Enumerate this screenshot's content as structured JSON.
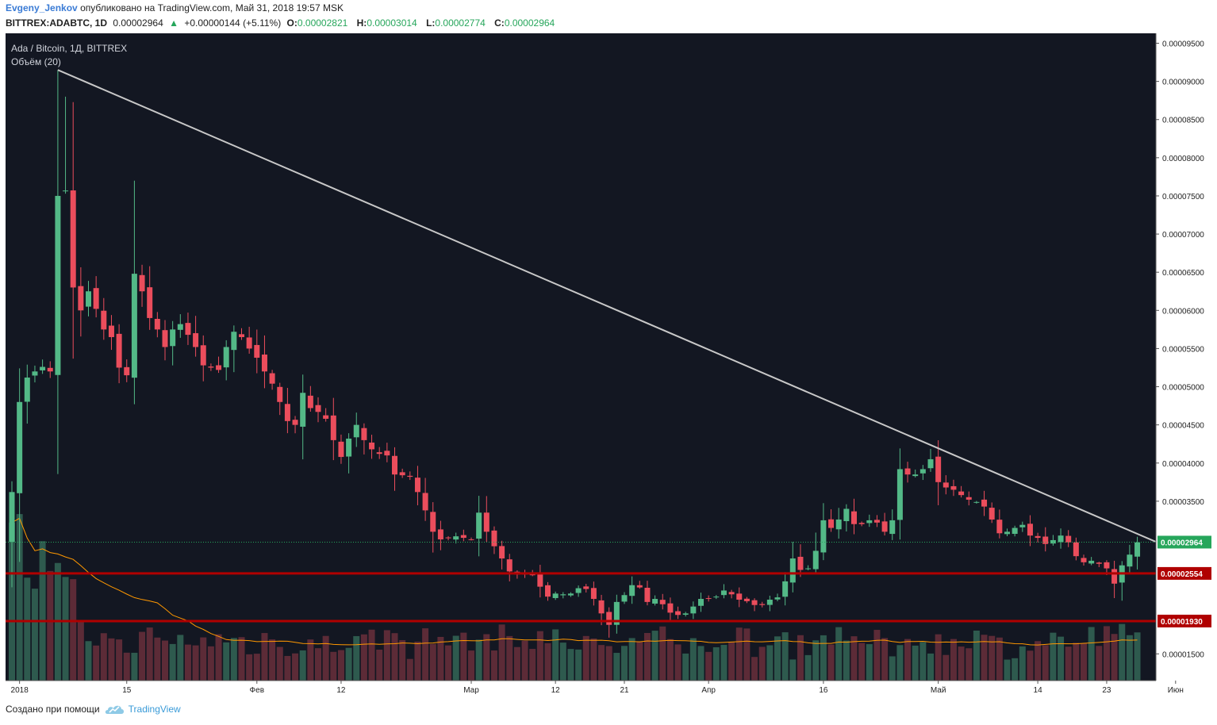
{
  "header": {
    "author": "Evgeny_Jenkov",
    "published_text": "опубликовано на TradingView.com, Май 31, 2018 19:57 MSK",
    "symbol": "BITTREX:ADABTC, 1D",
    "price": "0.00002964",
    "change": "+0.00000144 (+5.11%)",
    "o_label": "O:",
    "o_value": "0.00002821",
    "h_label": "H:",
    "h_value": "0.00003014",
    "l_label": "L:",
    "l_value": "0.00002774",
    "c_label": "C:",
    "c_value": "0.00002964"
  },
  "legend": {
    "title": "Ada / Bitcoin, 1Д, BITTREX",
    "volume": "Объём (20)"
  },
  "footer": {
    "created_with": "Создано при помощи",
    "brand": "TradingView"
  },
  "colors": {
    "background": "#131722",
    "up": "#26a69a",
    "up_bright": "#53b987",
    "down": "#eb4d5c",
    "trendline": "#c8c8c8",
    "support": "#b00000",
    "volume_ma": "#ff9800",
    "price_marker": "#26a65b"
  },
  "chart_data": {
    "type": "candlestick",
    "title": "Ada / Bitcoin, 1Д, BITTREX",
    "interval": "1D",
    "ylim": [
      1.15e-05,
      9.63e-05
    ],
    "y_ticks": [
      "0.00009500",
      "0.00009000",
      "0.00008500",
      "0.00008000",
      "0.00007500",
      "0.00007000",
      "0.00006500",
      "0.00006000",
      "0.00005500",
      "0.00005000",
      "0.00004500",
      "0.00004000",
      "0.00003500",
      "0.00001500"
    ],
    "y_tick_values": [
      9.5e-05,
      9e-05,
      8.5e-05,
      8e-05,
      7.5e-05,
      7e-05,
      6.5e-05,
      6e-05,
      5.5e-05,
      5e-05,
      4.5e-05,
      4e-05,
      3.5e-05,
      1.5e-05
    ],
    "x_ticks": [
      "2018",
      "15",
      "Фев",
      "12",
      "Мар",
      "12",
      "21",
      "Апр",
      "16",
      "Май",
      "14",
      "23",
      "Июн"
    ],
    "x_tick_dates": [
      "2018-01-01",
      "2018-01-15",
      "2018-02-01",
      "2018-02-12",
      "2018-03-01",
      "2018-03-12",
      "2018-03-21",
      "2018-04-01",
      "2018-04-16",
      "2018-05-01",
      "2018-05-14",
      "2018-05-23",
      "2018-06-01"
    ],
    "date_range": [
      "2017-12-31",
      "2018-05-31"
    ],
    "close": [
      3.62e-05,
      4.8e-05,
      5.12e-05,
      5.2e-05,
      5.26e-05,
      5.2e-05,
      7.5e-05,
      7.57e-05,
      6.3e-05,
      6e-05,
      6.25e-05,
      6.02e-05,
      5.75e-05,
      5.65e-05,
      5.25e-05,
      5.15e-05,
      6.48e-05,
      6.25e-05,
      5.9e-05,
      5.75e-05,
      5.52e-05,
      5.75e-05,
      5.82e-05,
      5.68e-05,
      5.52e-05,
      5.28e-05,
      5.25e-05,
      5.22e-05,
      5.52e-05,
      5.72e-05,
      5.65e-05,
      5.5e-05,
      5.38e-05,
      5.2e-05,
      5.04e-05,
      4.8e-05,
      4.55e-05,
      4.5e-05,
      4.92e-05,
      4.72e-05,
      4.67e-05,
      4.58e-05,
      4.3e-05,
      4.08e-05,
      4.32e-05,
      4.5e-05,
      4.3e-05,
      4.18e-05,
      4.12e-05,
      4.1e-05,
      3.85e-05,
      3.84e-05,
      3.82e-05,
      3.62e-05,
      3.38e-05,
      3.1e-05,
      3e-05,
      3.02e-05,
      3.04e-05,
      3.02e-05,
      3e-05,
      3.35e-05,
      3.1e-05,
      2.91e-05,
      2.75e-05,
      2.58e-05,
      2.54e-05,
      2.54e-05,
      2.53e-05,
      2.38e-05,
      2.25e-05,
      2.29e-05,
      2.28e-05,
      2.29e-05,
      2.36e-05,
      2.35e-05,
      2.22e-05,
      2.03e-05,
      1.88e-05,
      2.18e-05,
      2.27e-05,
      2.4e-05,
      2.37e-05,
      2.18e-05,
      2.22e-05,
      2.15e-05,
      2.04e-05,
      2.01e-05,
      2.03e-05,
      2.12e-05,
      2.22e-05,
      2.22e-05,
      2.25e-05,
      2.33e-05,
      2.28e-05,
      2.21e-05,
      2.19e-05,
      2.14e-05,
      2.14e-05,
      2.21e-05,
      2.24e-05,
      2.45e-05,
      2.75e-05,
      2.6e-05,
      2.62e-05,
      2.85e-05,
      3.25e-05,
      3.15e-05,
      3.26e-05,
      3.4e-05,
      3.2e-05,
      3.2e-05,
      3.25e-05,
      3.22e-05,
      3.1e-05,
      3.25e-05,
      3.92e-05,
      3.85e-05,
      3.85e-05,
      3.92e-05,
      4.05e-05,
      3.75e-05,
      3.68e-05,
      3.65e-05,
      3.58e-05,
      3.52e-05,
      3.49e-05,
      3.43e-05,
      3.26e-05,
      3.08e-05,
      3.1e-05,
      3.15e-05,
      3.19e-05,
      3.05e-05,
      3.02e-05,
      2.94e-05,
      2.99e-05,
      3.05e-05,
      2.96e-05,
      2.78e-05,
      2.7e-05,
      2.72e-05,
      2.68e-05,
      2.62e-05,
      2.42e-05,
      2.66e-05,
      2.8e-05,
      2.96e-05
    ],
    "volume_range": [
      0,
      1e-05
    ]
  }
}
